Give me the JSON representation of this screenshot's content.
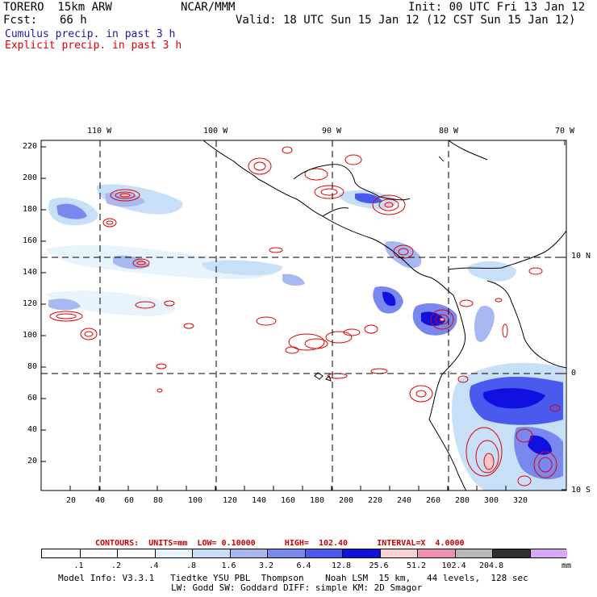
{
  "header": {
    "model": "TORERO  15km ARW",
    "org": "NCAR/MMM",
    "init": "Init: 00 UTC Fri 13 Jan 12",
    "fcst_label": "Fcst:",
    "fcst_value": "66 h",
    "valid": "Valid: 18 UTC Sun 15 Jan 12 (12 CST Sun 15 Jan 12)",
    "cumulus_label": "Cumulus precip. in past 3 h",
    "explicit_label": "Explicit precip. in past 3 h"
  },
  "map": {
    "lon_labels": [
      "110 W",
      "100 W",
      "90 W",
      "80 W",
      "70 W"
    ],
    "lat_labels": [
      "10 N",
      "0",
      "10 S"
    ],
    "y_ticks": [
      "220",
      "200",
      "180",
      "160",
      "140",
      "120",
      "100",
      "80",
      "60",
      "40",
      "20"
    ],
    "x_ticks": [
      "20",
      "40",
      "60",
      "80",
      "100",
      "120",
      "140",
      "160",
      "180",
      "200",
      "220",
      "240",
      "260",
      "280",
      "300",
      "320"
    ]
  },
  "contours": {
    "text": "CONTOURS:  UNITS=mm  LOW= 0.10000      HIGH=  102.40      INTERVAL=X  4.0000"
  },
  "colorbar": {
    "labels": [
      ".1",
      ".2",
      ".4",
      ".8",
      "1.6",
      "3.2",
      "6.4",
      "12.8",
      "25.6",
      "51.2",
      "102.4",
      "204.8"
    ],
    "unit": "mm",
    "colors": [
      "#ffffff",
      "#ffffff",
      "#ffffff",
      "#e8f4fc",
      "#c8dff8",
      "#a8b8f0",
      "#7888ee",
      "#4a5aee",
      "#1010e0",
      "#f8d0d0",
      "#f090b0",
      "#b8b8b8",
      "#303030",
      "#d8a8f8"
    ]
  },
  "footer": {
    "line1": "Model Info: V3.3.1   Tiedtke YSU PBL  Thompson    Noah LSM  15 km,   44 levels,  128 sec",
    "line2": "LW: Godd SW: Goddard DIFF: simple KM: 2D Smagor"
  }
}
